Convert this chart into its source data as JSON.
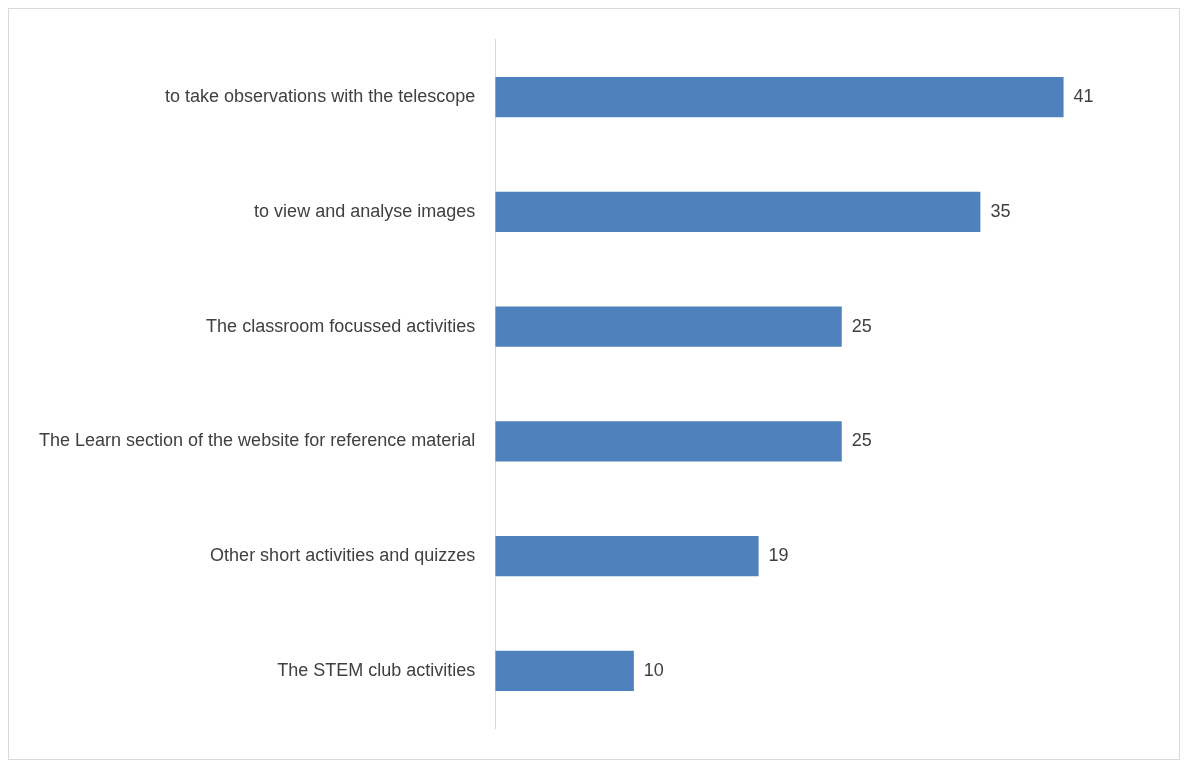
{
  "chart_data": {
    "type": "bar",
    "orientation": "horizontal",
    "categories": [
      "to take observations with the telescope",
      "to view and analyse images",
      "The classroom focussed activities",
      "The Learn section of the website for reference material",
      "Other short activities and quizzes",
      "The STEM club activities"
    ],
    "values": [
      41,
      35,
      25,
      25,
      19,
      10
    ],
    "color": "#4f81bd",
    "data_labels": true,
    "legend": false,
    "tick_labels": "y"
  }
}
